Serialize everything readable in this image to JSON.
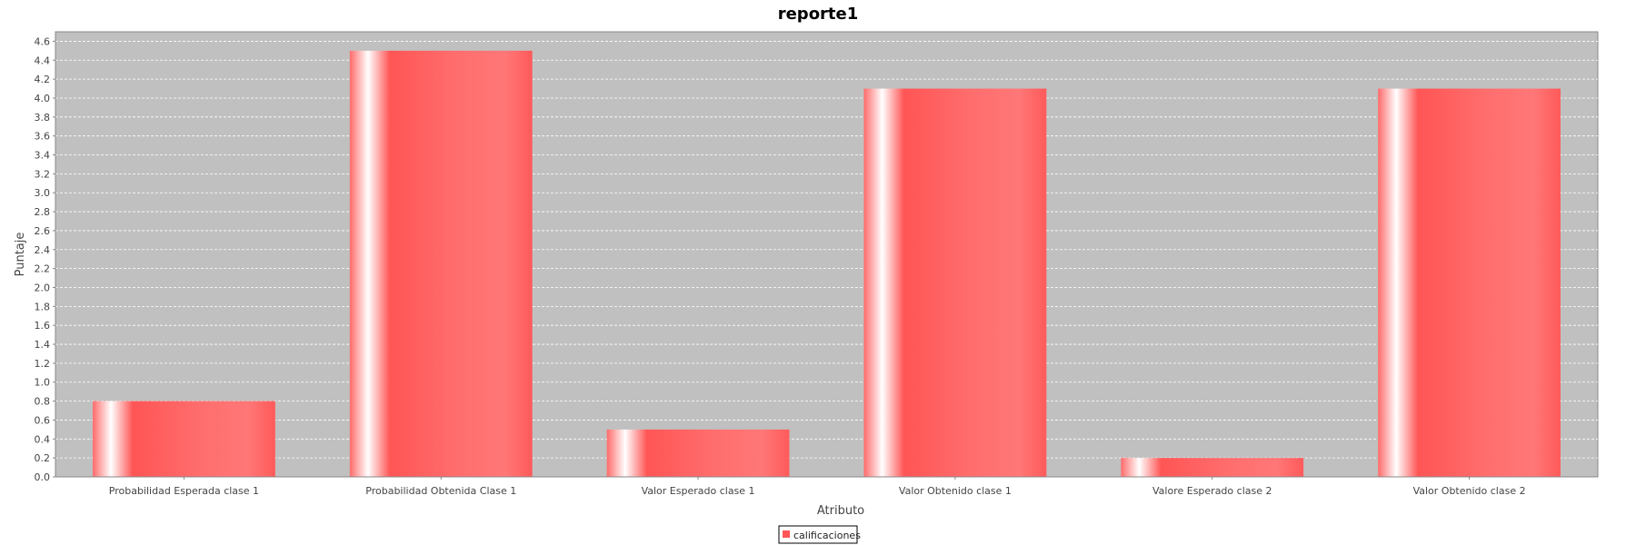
{
  "chart_data": {
    "type": "bar",
    "title": "reporte1",
    "xlabel": "Atributo",
    "ylabel": "Puntaje",
    "categories": [
      "Probabilidad Esperada clase 1",
      "Probabilidad Obtenida Clase 1",
      "Valor Esperado clase 1",
      "Valor Obtenido clase 1",
      "Valore Esperado clase 2",
      "Valor Obtenido clase 2"
    ],
    "series": [
      {
        "name": "calificaciones",
        "values": [
          0.8,
          4.5,
          0.5,
          4.1,
          0.2,
          4.1
        ]
      }
    ],
    "ylim": [
      0,
      4.7
    ],
    "yticks": [
      "0.0",
      "0.2",
      "0.4",
      "0.6",
      "0.8",
      "1.0",
      "1.2",
      "1.4",
      "1.6",
      "1.8",
      "2.0",
      "2.2",
      "2.4",
      "2.6",
      "2.8",
      "3.0",
      "3.2",
      "3.4",
      "3.6",
      "3.8",
      "4.0",
      "4.2",
      "4.4",
      "4.6"
    ],
    "grid": true,
    "legend_position": "bottom",
    "colors": {
      "bar": "#ff5555",
      "plot_background": "#c0c0c0",
      "gridline": "#ffffff"
    }
  }
}
